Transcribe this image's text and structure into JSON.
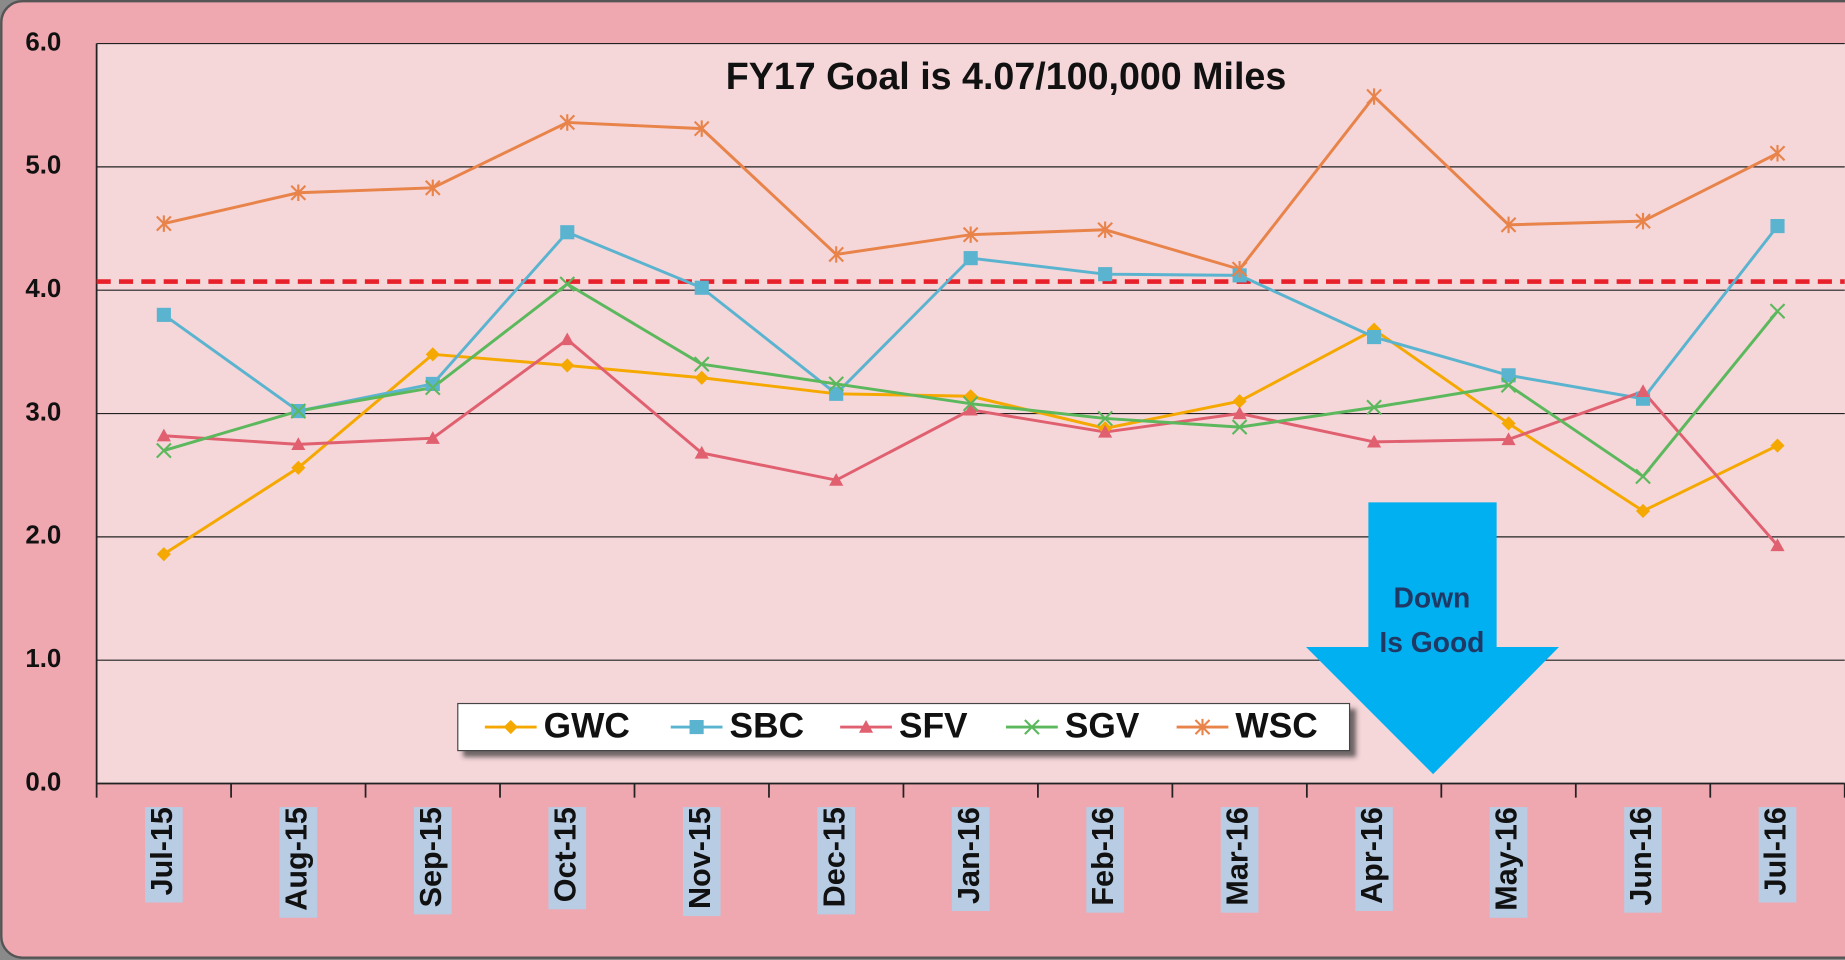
{
  "chart_data": {
    "type": "line",
    "title": "FY17 Goal is 4.07/100,000 Miles",
    "annotation": [
      "Down",
      "Is Good"
    ],
    "goal": 4.07,
    "goal_color": "#e8202a",
    "categories": [
      "Jul-15",
      "Aug-15",
      "Sep-15",
      "Oct-15",
      "Nov-15",
      "Dec-15",
      "Jan-16",
      "Feb-16",
      "Mar-16",
      "Apr-16",
      "May-16",
      "Jun-16",
      "Jul-16"
    ],
    "series": [
      {
        "name": "GWC",
        "color": "#f5a800",
        "marker": "diamond",
        "values": [
          1.86,
          2.56,
          3.48,
          3.39,
          3.29,
          3.16,
          3.14,
          2.88,
          3.1,
          3.68,
          2.92,
          2.21,
          2.74
        ]
      },
      {
        "name": "SBC",
        "color": "#5ab4d0",
        "marker": "square",
        "values": [
          3.8,
          3.02,
          3.24,
          4.47,
          4.02,
          3.16,
          4.26,
          4.13,
          4.12,
          3.62,
          3.31,
          3.12,
          4.52
        ]
      },
      {
        "name": "SFV",
        "color": "#e06070",
        "marker": "triangle",
        "values": [
          2.82,
          2.75,
          2.8,
          3.6,
          2.68,
          2.46,
          3.03,
          2.85,
          3.0,
          2.77,
          2.79,
          3.18,
          1.93
        ]
      },
      {
        "name": "SGV",
        "color": "#5cb85c",
        "marker": "x",
        "values": [
          2.7,
          3.02,
          3.21,
          4.05,
          3.4,
          3.24,
          3.08,
          2.96,
          2.89,
          3.05,
          3.23,
          2.49,
          3.83
        ]
      },
      {
        "name": "WSC",
        "color": "#e8834a",
        "marker": "star",
        "values": [
          4.54,
          4.79,
          4.83,
          5.36,
          5.31,
          4.29,
          4.45,
          4.49,
          4.17,
          5.57,
          4.53,
          4.56,
          5.11
        ]
      }
    ],
    "ylim": [
      0,
      6
    ],
    "yticks": [
      {
        "value": 0,
        "label": "0.0"
      },
      {
        "value": 1,
        "label": "1.0"
      },
      {
        "value": 2,
        "label": "2.0"
      },
      {
        "value": 3,
        "label": "3.0"
      },
      {
        "value": 4,
        "label": "4.0"
      },
      {
        "value": 5,
        "label": "5.0"
      },
      {
        "value": 6,
        "label": "6.0"
      }
    ],
    "grid": true,
    "legend": "bottom"
  }
}
